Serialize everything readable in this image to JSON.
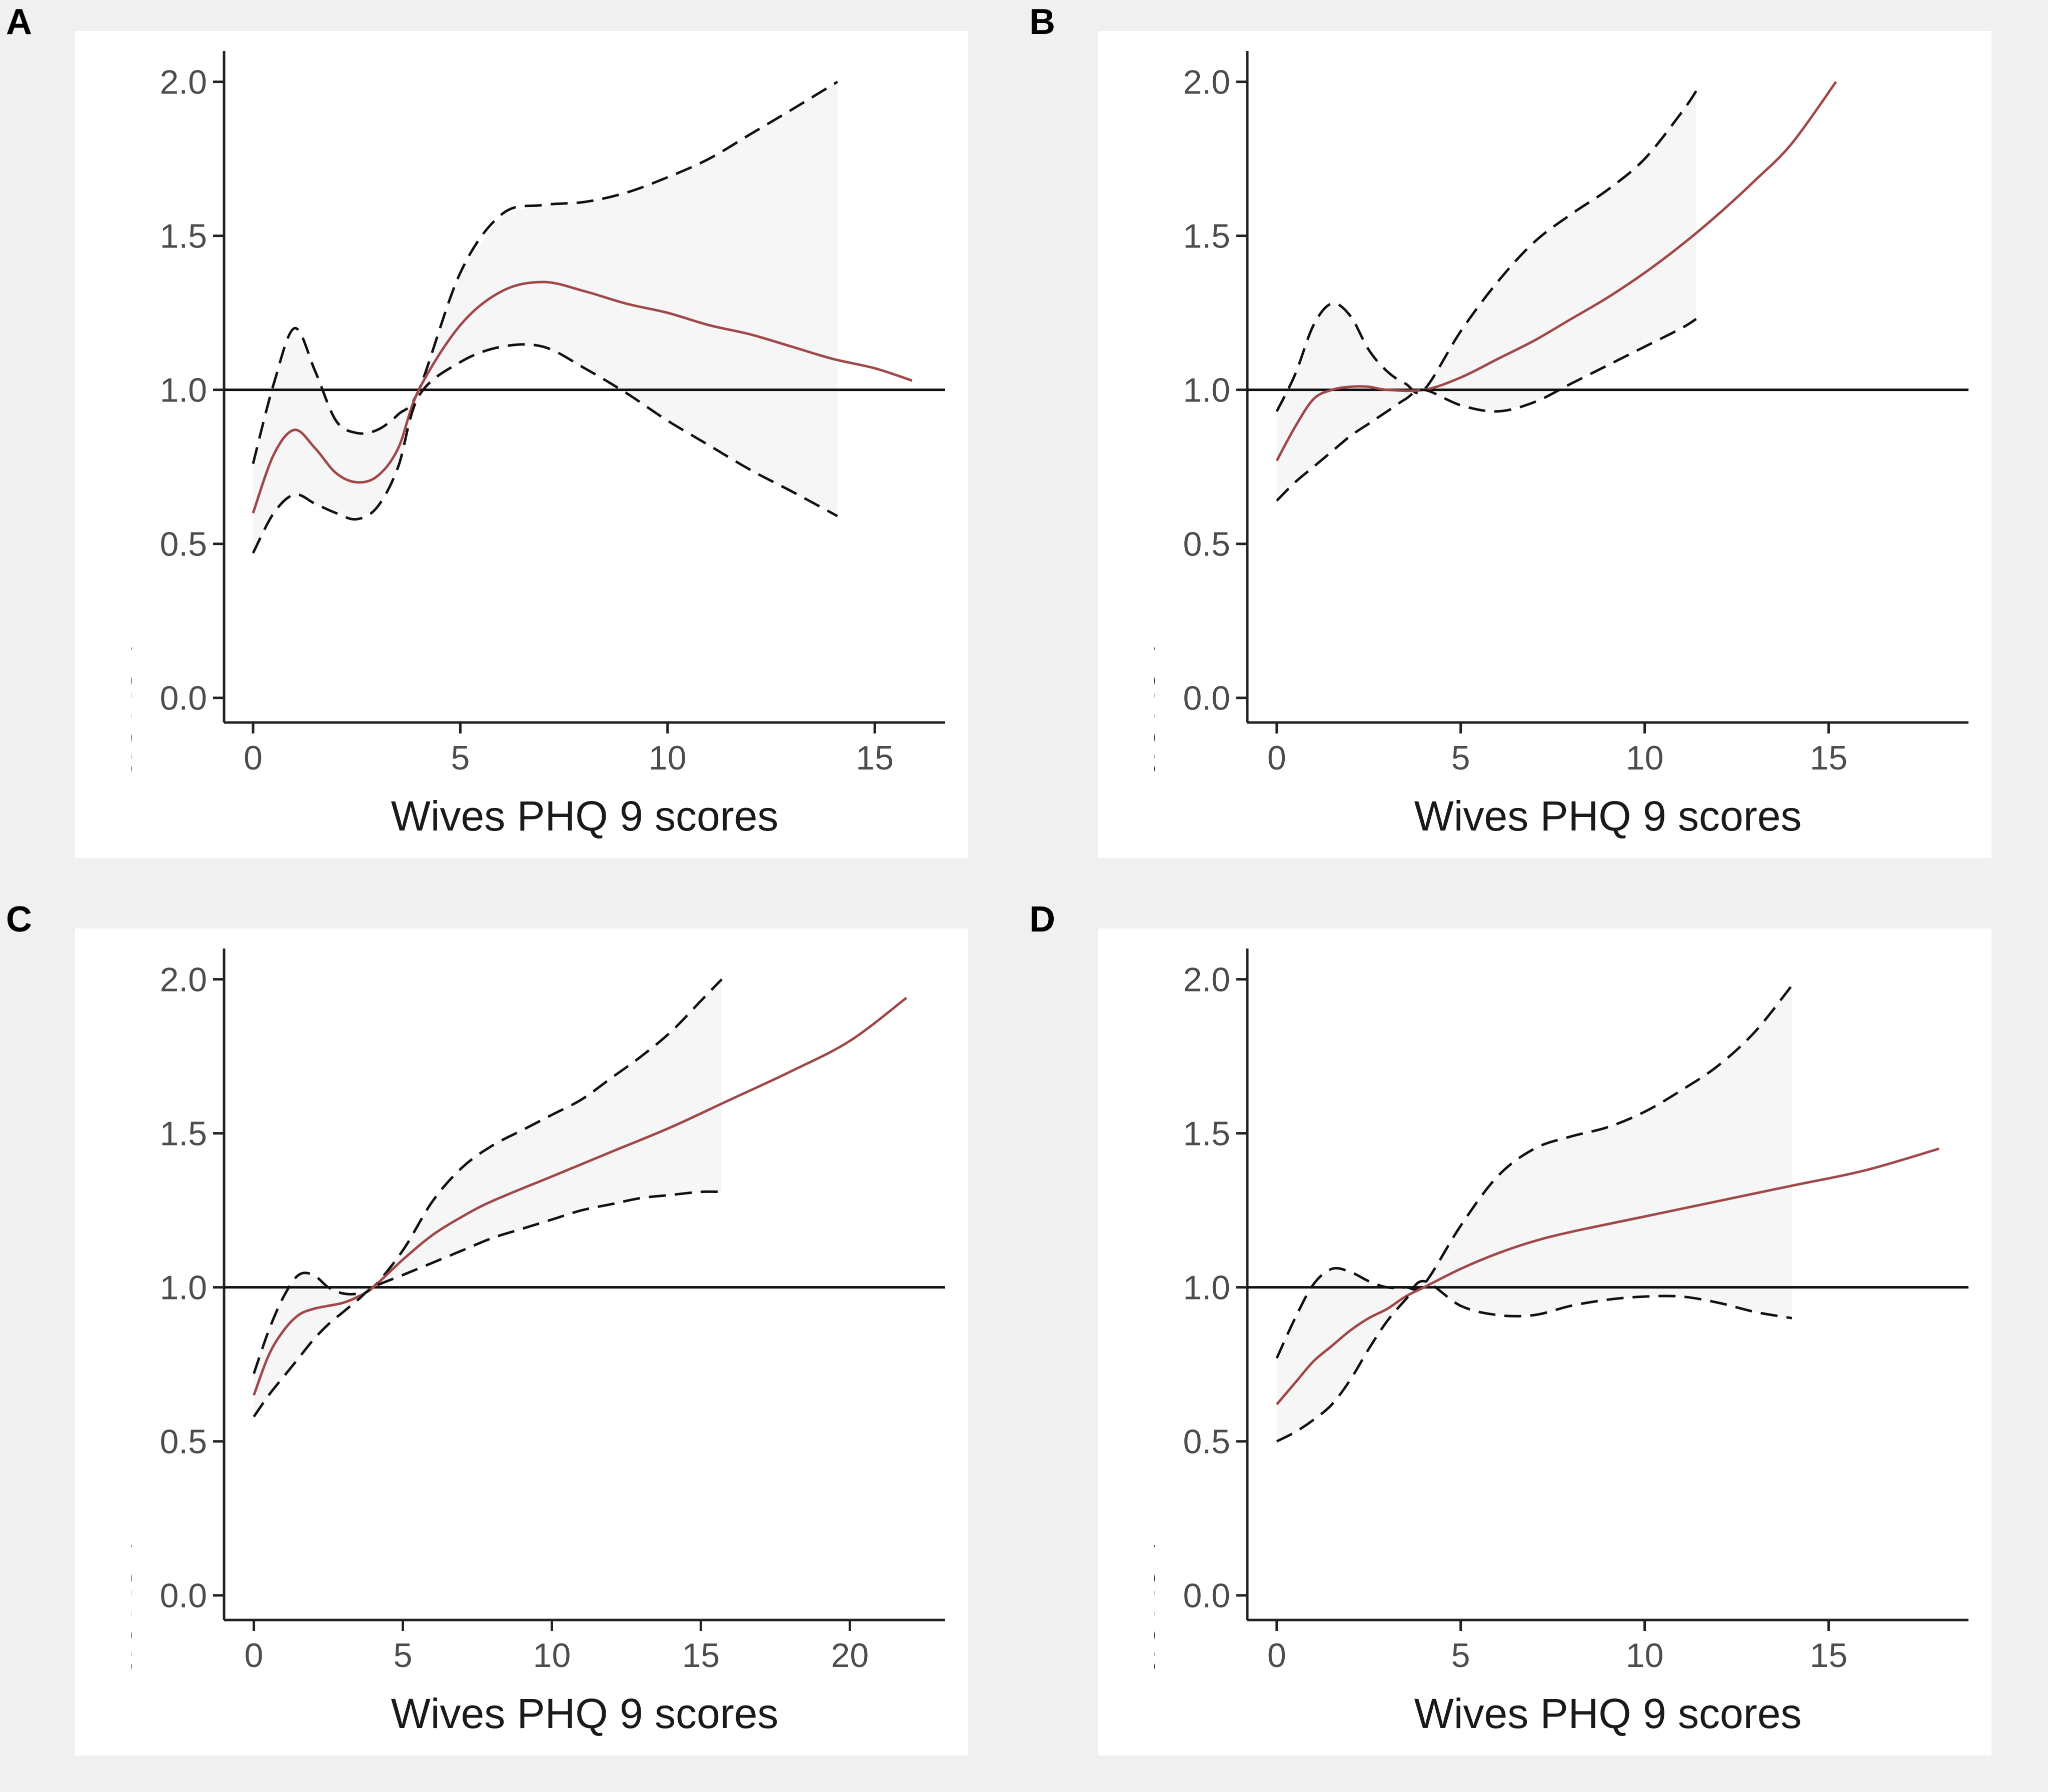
{
  "figure": {
    "chart_data": [
      {
        "panel": "A",
        "type": "line",
        "xlabel": "Wives PHQ 9 scores",
        "ylabel": "aORs of risk of depressions in husband",
        "xlim": [
          -0.7,
          16.7
        ],
        "ylim": [
          -0.08,
          2.1
        ],
        "xticks": [
          0,
          5,
          10,
          15
        ],
        "yticks": [
          0.0,
          0.5,
          1.0,
          1.5,
          2.0
        ],
        "ytick_labels": [
          "0.0",
          "0.5",
          "1.0",
          "1.5",
          "2.0"
        ],
        "reference_y": 1.0,
        "series": [
          {
            "name": "upper",
            "style": "dashed",
            "x": [
              0,
              0.5,
              1,
              1.5,
              2,
              2.5,
              3,
              3.5,
              4,
              5,
              6,
              7,
              8,
              9,
              10,
              11,
              12,
              13,
              14.1
            ],
            "values": [
              0.76,
              1.02,
              1.2,
              1.06,
              0.9,
              0.86,
              0.87,
              0.92,
              1.0,
              1.38,
              1.57,
              1.6,
              1.61,
              1.64,
              1.69,
              1.75,
              1.83,
              1.91,
              2.0
            ]
          },
          {
            "name": "estimate",
            "style": "solid",
            "x": [
              0,
              0.5,
              1,
              1.5,
              2,
              2.5,
              3,
              3.5,
              4,
              5,
              6,
              7,
              8,
              9,
              10,
              11,
              12,
              13,
              14,
              15,
              15.9
            ],
            "values": [
              0.6,
              0.79,
              0.87,
              0.81,
              0.73,
              0.7,
              0.72,
              0.81,
              1.0,
              1.21,
              1.32,
              1.35,
              1.32,
              1.28,
              1.25,
              1.21,
              1.18,
              1.14,
              1.1,
              1.07,
              1.03
            ]
          },
          {
            "name": "lower",
            "style": "dashed",
            "x": [
              0,
              0.5,
              1,
              1.5,
              2,
              2.5,
              3,
              3.5,
              4,
              5,
              6,
              7,
              8,
              9,
              10,
              11,
              12,
              13,
              14.1
            ],
            "values": [
              0.47,
              0.6,
              0.66,
              0.63,
              0.6,
              0.58,
              0.62,
              0.75,
              0.98,
              1.09,
              1.14,
              1.14,
              1.07,
              0.99,
              0.9,
              0.82,
              0.74,
              0.67,
              0.59
            ]
          }
        ]
      },
      {
        "panel": "B",
        "type": "line",
        "xlabel": "Wives PHQ 9 scores",
        "ylabel": "aORs of risk of depressions in husband",
        "xlim": [
          -0.8,
          18.8
        ],
        "ylim": [
          -0.08,
          2.1
        ],
        "xticks": [
          0,
          5,
          10,
          15
        ],
        "yticks": [
          0.0,
          0.5,
          1.0,
          1.5,
          2.0
        ],
        "ytick_labels": [
          "0.0",
          "0.5",
          "1.0",
          "1.5",
          "2.0"
        ],
        "reference_y": 1.0,
        "series": [
          {
            "name": "upper",
            "style": "dashed",
            "x": [
              0,
              0.5,
              1,
              1.5,
              2,
              2.5,
              3,
              3.5,
              4,
              5,
              6,
              7,
              8,
              9,
              10,
              11,
              11.4
            ],
            "values": [
              0.93,
              1.05,
              1.21,
              1.28,
              1.24,
              1.13,
              1.06,
              1.02,
              1.0,
              1.19,
              1.35,
              1.48,
              1.57,
              1.65,
              1.75,
              1.9,
              1.97
            ]
          },
          {
            "name": "estimate",
            "style": "solid",
            "x": [
              0,
              0.5,
              1,
              1.5,
              2,
              2.5,
              3,
              4,
              5,
              6,
              7,
              8,
              9,
              10,
              11,
              12,
              13,
              14,
              15.2
            ],
            "values": [
              0.77,
              0.88,
              0.97,
              1.0,
              1.01,
              1.01,
              1.0,
              1.0,
              1.04,
              1.1,
              1.16,
              1.23,
              1.3,
              1.38,
              1.47,
              1.57,
              1.68,
              1.8,
              2.0
            ]
          },
          {
            "name": "lower",
            "style": "dashed",
            "x": [
              0,
              0.5,
              1,
              1.5,
              2,
              2.5,
              3,
              3.5,
              4,
              5,
              6,
              7,
              8,
              9,
              10,
              11,
              11.4
            ],
            "values": [
              0.64,
              0.7,
              0.75,
              0.8,
              0.85,
              0.89,
              0.93,
              0.97,
              1.0,
              0.95,
              0.93,
              0.96,
              1.02,
              1.08,
              1.14,
              1.2,
              1.23
            ]
          }
        ]
      },
      {
        "panel": "C",
        "type": "line",
        "xlabel": "Wives PHQ 9 scores",
        "ylabel": "aORs of risk of depressions in husband",
        "xlim": [
          -1.0,
          23.2
        ],
        "ylim": [
          -0.08,
          2.1
        ],
        "xticks": [
          0,
          5,
          10,
          15,
          20
        ],
        "yticks": [
          0.0,
          0.5,
          1.0,
          1.5,
          2.0
        ],
        "ytick_labels": [
          "0.0",
          "0.5",
          "1.0",
          "1.5",
          "2.0"
        ],
        "reference_y": 1.0,
        "series": [
          {
            "name": "upper",
            "style": "dashed",
            "x": [
              0,
              0.5,
              1,
              1.5,
              2,
              2.5,
              3,
              3.5,
              4,
              5,
              6,
              7,
              8,
              9,
              10,
              11,
              12,
              13,
              14,
              15,
              15.7
            ],
            "values": [
              0.72,
              0.86,
              0.97,
              1.04,
              1.04,
              1.0,
              0.98,
              0.98,
              1.0,
              1.12,
              1.28,
              1.39,
              1.46,
              1.51,
              1.56,
              1.61,
              1.68,
              1.75,
              1.83,
              1.93,
              2.0
            ]
          },
          {
            "name": "estimate",
            "style": "solid",
            "x": [
              0,
              0.5,
              1,
              1.5,
              2,
              2.5,
              3,
              3.5,
              4,
              5,
              6,
              7,
              8,
              10,
              12,
              14,
              16,
              18,
              20,
              21.9
            ],
            "values": [
              0.65,
              0.78,
              0.86,
              0.91,
              0.93,
              0.94,
              0.95,
              0.97,
              1.0,
              1.09,
              1.17,
              1.23,
              1.28,
              1.36,
              1.44,
              1.52,
              1.61,
              1.7,
              1.8,
              1.94
            ]
          },
          {
            "name": "lower",
            "style": "dashed",
            "x": [
              0,
              0.5,
              1,
              1.5,
              2,
              2.5,
              3,
              3.5,
              4,
              5,
              6,
              7,
              8,
              9,
              10,
              11,
              12,
              13,
              14,
              15,
              15.7
            ],
            "values": [
              0.58,
              0.65,
              0.71,
              0.77,
              0.83,
              0.88,
              0.92,
              0.96,
              1.0,
              1.04,
              1.08,
              1.12,
              1.16,
              1.19,
              1.22,
              1.25,
              1.27,
              1.29,
              1.3,
              1.31,
              1.31
            ]
          }
        ]
      },
      {
        "panel": "D",
        "type": "line",
        "xlabel": "Wives PHQ 9 scores",
        "ylabel": "aORs of risk of depressions in husband",
        "xlim": [
          -0.8,
          18.8
        ],
        "ylim": [
          -0.08,
          2.1
        ],
        "xticks": [
          0,
          5,
          10,
          15
        ],
        "yticks": [
          0.0,
          0.5,
          1.0,
          1.5,
          2.0
        ],
        "ytick_labels": [
          "0.0",
          "0.5",
          "1.0",
          "1.5",
          "2.0"
        ],
        "reference_y": 1.0,
        "series": [
          {
            "name": "upper",
            "style": "dashed",
            "x": [
              0,
              0.5,
              1,
              1.5,
              2,
              2.5,
              3,
              3.5,
              4,
              5,
              6,
              7,
              8,
              9,
              10,
              11,
              12,
              13,
              14
            ],
            "values": [
              0.77,
              0.9,
              1.01,
              1.06,
              1.05,
              1.02,
              1.0,
              1.0,
              1.01,
              1.2,
              1.36,
              1.45,
              1.49,
              1.52,
              1.57,
              1.64,
              1.72,
              1.83,
              1.98
            ]
          },
          {
            "name": "estimate",
            "style": "solid",
            "x": [
              0,
              0.5,
              1,
              1.5,
              2,
              2.5,
              3,
              3.5,
              4,
              5,
              6,
              7,
              8,
              10,
              12,
              14,
              16,
              18
            ],
            "values": [
              0.62,
              0.69,
              0.76,
              0.81,
              0.86,
              0.9,
              0.93,
              0.97,
              1.0,
              1.06,
              1.11,
              1.15,
              1.18,
              1.23,
              1.28,
              1.33,
              1.38,
              1.45
            ]
          },
          {
            "name": "lower",
            "style": "dashed",
            "x": [
              0,
              0.5,
              1,
              1.5,
              2,
              2.5,
              3,
              3.5,
              4,
              5,
              6,
              7,
              8,
              9,
              10,
              11,
              12,
              13,
              14
            ],
            "values": [
              0.5,
              0.53,
              0.57,
              0.62,
              0.7,
              0.8,
              0.89,
              0.96,
              1.02,
              0.94,
              0.91,
              0.91,
              0.94,
              0.96,
              0.97,
              0.97,
              0.95,
              0.92,
              0.9
            ]
          }
        ]
      }
    ]
  }
}
